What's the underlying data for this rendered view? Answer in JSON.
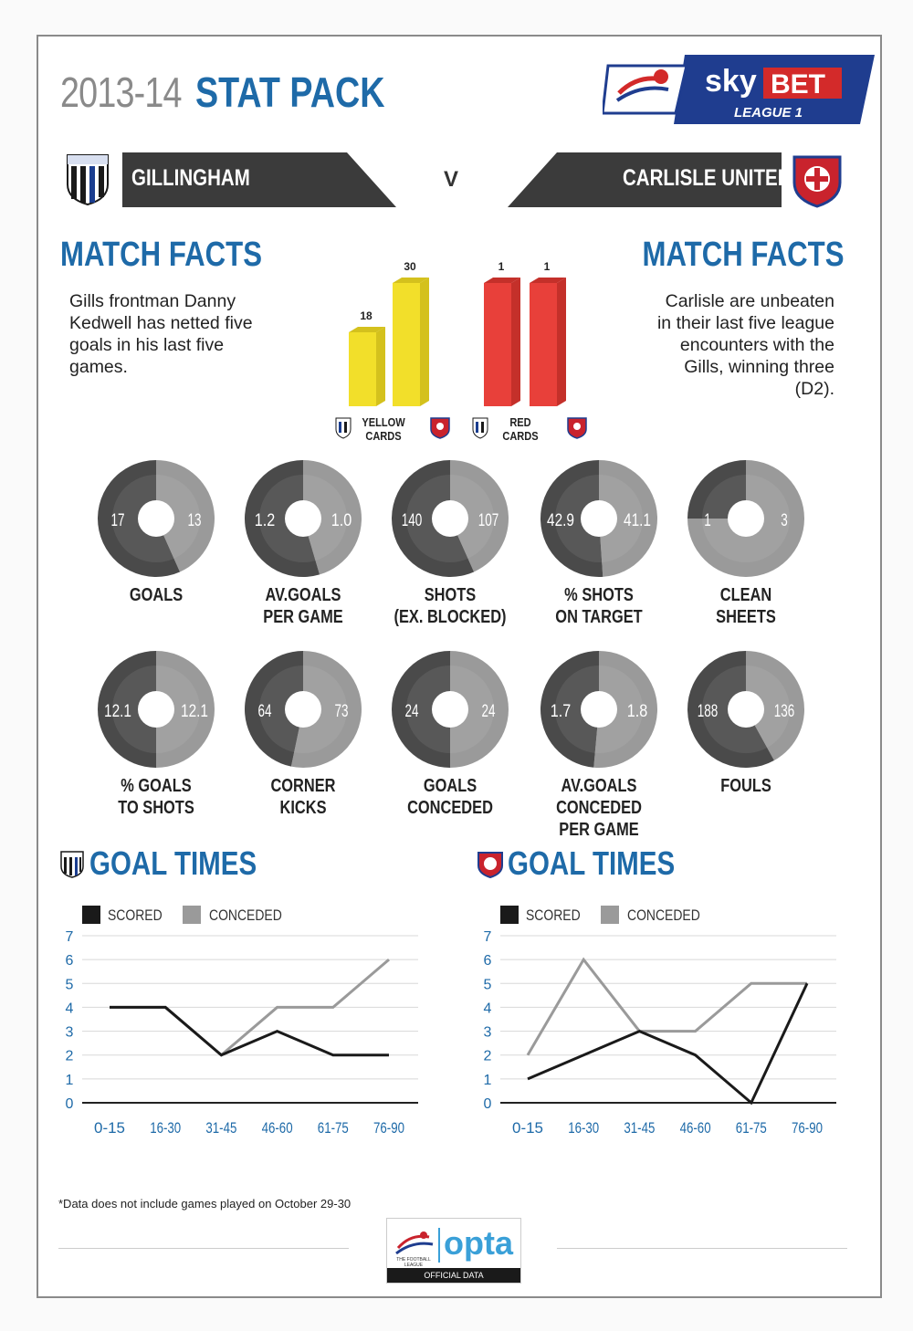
{
  "header": {
    "year": "2013-14",
    "title": "STAT PACK",
    "sponsor_sky": "sky",
    "sponsor_bet": "BET",
    "sponsor_league": "LEAGUE 1"
  },
  "teams": {
    "home": "GILLINGHAM",
    "vs": "V",
    "away": "CARLISLE UNITED"
  },
  "match_facts": {
    "heading_left": "MATCH FACTS",
    "heading_right": "MATCH FACTS",
    "left_lines": [
      "Gills frontman Danny",
      "Kedwell has netted five",
      "goals in his last five",
      "games."
    ],
    "right_lines": [
      "Carlisle are unbeaten",
      "in their last five league",
      "encounters with the",
      "Gills, winning three",
      "(D2)."
    ]
  },
  "cards": {
    "yellow_label": [
      "YELLOW",
      "CARDS"
    ],
    "red_label": [
      "RED",
      "CARDS"
    ]
  },
  "stats_labels": {
    "row1": [
      [
        "GOALS"
      ],
      [
        "AV.GOALS",
        "PER GAME"
      ],
      [
        "SHOTS",
        "(EX. BLOCKED)"
      ],
      [
        "% SHOTS",
        "ON TARGET"
      ],
      [
        "CLEAN",
        "SHEETS"
      ]
    ],
    "row2": [
      [
        "% GOALS",
        "TO SHOTS"
      ],
      [
        "CORNER",
        "KICKS"
      ],
      [
        "GOALS",
        "CONCEDED"
      ],
      [
        "AV.GOALS CONCEDED",
        "PER GAME"
      ],
      [
        "FOULS"
      ]
    ]
  },
  "goal_times": {
    "heading": "GOAL TIMES",
    "legend_scored": "SCORED",
    "legend_conceded": "CONCEDED"
  },
  "footer": {
    "footnote": "*Data does not include games played on October 29-30",
    "opta": "opta",
    "opta_sub": "OFFICIAL DATA",
    "league_mark": "THE FOOTBALL LEAGUE"
  },
  "colors": {
    "blue": "#1e6aa8",
    "yellow": "#f2df2a",
    "red": "#e8403a",
    "donut_dark": "#4a4a4a",
    "donut_light": "#9a9a9a",
    "scored": "#1a1a1a",
    "conceded": "#9a9a9a"
  },
  "chart_data": [
    {
      "type": "bar",
      "categories": [
        "Gillingham",
        "Carlisle United",
        "Gillingham",
        "Carlisle United"
      ],
      "series": [
        {
          "name": "YELLOW CARDS",
          "values": [
            18,
            30,
            null,
            null
          ]
        },
        {
          "name": "RED CARDS",
          "values": [
            null,
            null,
            1,
            1
          ]
        }
      ],
      "data_labels": [
        "18",
        "30",
        "1",
        "1"
      ]
    },
    {
      "type": "pie",
      "stats": [
        {
          "home": 17,
          "away": 13,
          "home_label": "17",
          "away_label": "13"
        },
        {
          "home": 1.2,
          "away": 1.0,
          "home_label": "1.2",
          "away_label": "1.0"
        },
        {
          "home": 140,
          "away": 107,
          "home_label": "140",
          "away_label": "107"
        },
        {
          "home": 42.9,
          "away": 41.1,
          "home_label": "42.9",
          "away_label": "41.1"
        },
        {
          "home": 1,
          "away": 3,
          "home_label": "1",
          "away_label": "3"
        },
        {
          "home": 12.1,
          "away": 12.1,
          "home_label": "12.1",
          "away_label": "12.1"
        },
        {
          "home": 64,
          "away": 73,
          "home_label": "64",
          "away_label": "73"
        },
        {
          "home": 24,
          "away": 24,
          "home_label": "24",
          "away_label": "24"
        },
        {
          "home": 1.7,
          "away": 1.8,
          "home_label": "1.7",
          "away_label": "1.8"
        },
        {
          "home": 188,
          "away": 136,
          "home_label": "188",
          "away_label": "136"
        }
      ]
    },
    {
      "type": "line",
      "title": "GOAL TIMES",
      "categories": [
        "0-15",
        "16-30",
        "31-45",
        "46-60",
        "61-75",
        "76-90"
      ],
      "y_ticks": [
        "0",
        "1",
        "2",
        "3",
        "4",
        "5",
        "6",
        "7"
      ],
      "ylim": [
        0,
        7
      ],
      "grid": true,
      "series": [
        {
          "name": "SCORED",
          "values": [
            4,
            4,
            2,
            3,
            2,
            2
          ]
        },
        {
          "name": "CONCEDED",
          "values": [
            4,
            4,
            2,
            4,
            4,
            6
          ]
        }
      ]
    },
    {
      "type": "line",
      "title": "GOAL TIMES",
      "categories": [
        "0-15",
        "16-30",
        "31-45",
        "46-60",
        "61-75",
        "76-90"
      ],
      "y_ticks": [
        "0",
        "1",
        "2",
        "3",
        "4",
        "5",
        "6",
        "7"
      ],
      "ylim": [
        0,
        7
      ],
      "grid": true,
      "series": [
        {
          "name": "SCORED",
          "values": [
            1,
            2,
            3,
            2,
            0,
            5
          ]
        },
        {
          "name": "CONCEDED",
          "values": [
            2,
            6,
            3,
            3,
            5,
            5
          ]
        }
      ]
    }
  ]
}
